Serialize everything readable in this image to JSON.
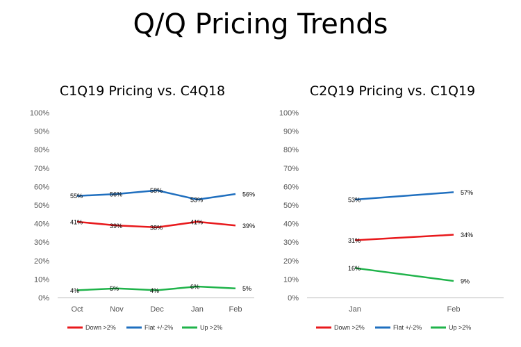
{
  "page": {
    "title": "Q/Q Pricing Trends"
  },
  "chart_data": [
    {
      "type": "line",
      "title": "C1Q19 Pricing vs. C4Q18",
      "categories": [
        "Oct",
        "Nov",
        "Dec",
        "Jan",
        "Feb"
      ],
      "y_ticks": [
        "100%",
        "90%",
        "80%",
        "70%",
        "60%",
        "50%",
        "40%",
        "30%",
        "20%",
        "10%",
        "0%"
      ],
      "ylim": [
        0,
        100
      ],
      "legend_position": "bottom",
      "series": [
        {
          "name": "Down >2%",
          "color": "#e8191c",
          "values": [
            41,
            39,
            38,
            41,
            39
          ],
          "labels": [
            "41%",
            "39%",
            "38%",
            "41%",
            "39%"
          ]
        },
        {
          "name": "Flat +/-2%",
          "color": "#1f6fbf",
          "values": [
            55,
            56,
            58,
            53,
            56
          ],
          "labels": [
            "55%",
            "56%",
            "58%",
            "53%",
            "56%"
          ]
        },
        {
          "name": "Up >2%",
          "color": "#1fb34a",
          "values": [
            4,
            5,
            4,
            6,
            5
          ],
          "labels": [
            "4%",
            "5%",
            "4%",
            "6%",
            "5%"
          ]
        }
      ]
    },
    {
      "type": "line",
      "title": "C2Q19 Pricing vs. C1Q19",
      "categories": [
        "Jan",
        "Feb"
      ],
      "y_ticks": [
        "100%",
        "90%",
        "80%",
        "70%",
        "60%",
        "50%",
        "40%",
        "30%",
        "20%",
        "10%",
        "0%"
      ],
      "ylim": [
        0,
        100
      ],
      "legend_position": "bottom",
      "series": [
        {
          "name": "Down >2%",
          "color": "#e8191c",
          "values": [
            31,
            34
          ],
          "labels": [
            "31%",
            "34%"
          ]
        },
        {
          "name": "Flat +/-2%",
          "color": "#1f6fbf",
          "values": [
            53,
            57
          ],
          "labels": [
            "53%",
            "57%"
          ]
        },
        {
          "name": "Up >2%",
          "color": "#1fb34a",
          "values": [
            16,
            9
          ],
          "labels": [
            "16%",
            "9%"
          ]
        }
      ]
    }
  ]
}
